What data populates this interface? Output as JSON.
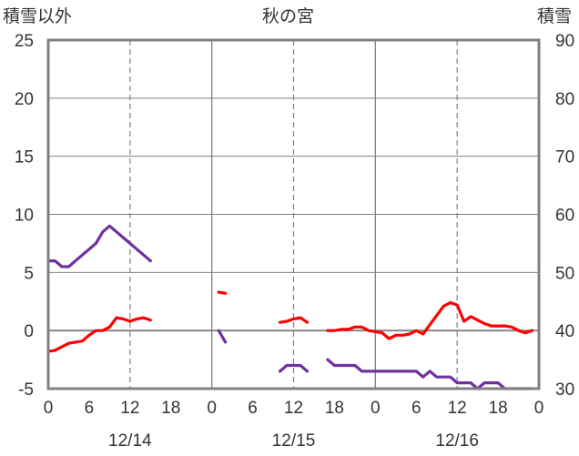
{
  "chart_data": {
    "type": "line",
    "title": "秋の宮",
    "left_axis": {
      "label": "積雪以外",
      "ylim": [
        -5,
        25
      ],
      "ticks": [
        25,
        20,
        15,
        10,
        5,
        0,
        -5
      ]
    },
    "right_axis": {
      "label": "積雪",
      "ylim": [
        30,
        90
      ],
      "ticks": [
        90,
        80,
        70,
        60,
        50,
        40,
        30
      ]
    },
    "x_axis": {
      "unit": "hours from 12/14 00:00",
      "range": [
        0,
        72
      ],
      "tick_hours": [
        0,
        6,
        12,
        18,
        24,
        30,
        36,
        42,
        48,
        54,
        60,
        66,
        72
      ],
      "tick_labels": [
        "0",
        "6",
        "12",
        "18",
        "0",
        "6",
        "12",
        "18",
        "0",
        "6",
        "12",
        "18",
        "0"
      ],
      "day_labels": [
        {
          "hour": 12,
          "label": "12/14"
        },
        {
          "hour": 36,
          "label": "12/15"
        },
        {
          "hour": 60,
          "label": "12/16"
        }
      ],
      "day_boundaries": [
        24,
        48
      ],
      "noon_lines": [
        12,
        36,
        60
      ]
    },
    "grid": true,
    "colors": {
      "temperature": "#ff0000",
      "snow_depth": "#7030a0",
      "frame": "#808080",
      "grid": "#808080"
    },
    "series": [
      {
        "axis": "left",
        "color": "#ff0000",
        "segments": [
          [
            [
              0,
              -1.8
            ],
            [
              1,
              -1.7
            ],
            [
              2,
              -1.4
            ],
            [
              3,
              -1.1
            ],
            [
              4,
              -1.0
            ],
            [
              5,
              -0.9
            ],
            [
              6,
              -0.4
            ],
            [
              7,
              0
            ],
            [
              8,
              0
            ],
            [
              9,
              0.3
            ],
            [
              10,
              1.1
            ],
            [
              11,
              1.0
            ],
            [
              12,
              0.8
            ],
            [
              13,
              1.0
            ],
            [
              14,
              1.1
            ],
            [
              15,
              0.9
            ]
          ],
          [
            [
              25,
              3.3
            ],
            [
              26,
              3.2
            ]
          ],
          [
            [
              34,
              0.7
            ],
            [
              35,
              0.8
            ],
            [
              36,
              1.0
            ],
            [
              37,
              1.1
            ],
            [
              38,
              0.7
            ]
          ],
          [
            [
              41,
              0
            ],
            [
              42,
              0
            ],
            [
              43,
              0.1
            ],
            [
              44,
              0.1
            ],
            [
              45,
              0.3
            ],
            [
              46,
              0.3
            ],
            [
              47,
              0
            ],
            [
              48,
              -0.1
            ],
            [
              49,
              -0.2
            ],
            [
              50,
              -0.7
            ],
            [
              51,
              -0.4
            ],
            [
              52,
              -0.4
            ],
            [
              53,
              -0.3
            ],
            [
              54,
              0
            ],
            [
              55,
              -0.3
            ],
            [
              56,
              0.5
            ],
            [
              57,
              1.3
            ],
            [
              58,
              2.1
            ],
            [
              59,
              2.4
            ],
            [
              60,
              2.2
            ],
            [
              61,
              0.8
            ],
            [
              62,
              1.2
            ],
            [
              63,
              0.9
            ],
            [
              64,
              0.6
            ],
            [
              65,
              0.4
            ],
            [
              66,
              0.4
            ],
            [
              67,
              0.4
            ],
            [
              68,
              0.3
            ],
            [
              69,
              0
            ],
            [
              70,
              -0.2
            ],
            [
              71,
              0
            ]
          ]
        ]
      },
      {
        "axis": "right",
        "color": "#7030a0",
        "segments": [
          [
            [
              0,
              52
            ],
            [
              1,
              52
            ],
            [
              2,
              51
            ],
            [
              3,
              51
            ],
            [
              4,
              52
            ],
            [
              5,
              53
            ],
            [
              6,
              54
            ],
            [
              7,
              55
            ],
            [
              8,
              57
            ],
            [
              9,
              58
            ],
            [
              10,
              57
            ],
            [
              11,
              56
            ],
            [
              12,
              55
            ],
            [
              13,
              54
            ],
            [
              14,
              53
            ],
            [
              15,
              52
            ]
          ],
          [
            [
              25,
              40
            ],
            [
              26,
              38
            ]
          ],
          [
            [
              34,
              33
            ],
            [
              35,
              34
            ],
            [
              36,
              34
            ],
            [
              37,
              34
            ],
            [
              38,
              33
            ]
          ],
          [
            [
              41,
              35
            ],
            [
              42,
              34
            ],
            [
              43,
              34
            ],
            [
              44,
              34
            ],
            [
              45,
              34
            ],
            [
              46,
              33
            ],
            [
              47,
              33
            ],
            [
              48,
              33
            ],
            [
              49,
              33
            ],
            [
              50,
              33
            ],
            [
              51,
              33
            ],
            [
              52,
              33
            ],
            [
              53,
              33
            ],
            [
              54,
              33
            ],
            [
              55,
              32
            ],
            [
              56,
              33
            ],
            [
              57,
              32
            ],
            [
              58,
              32
            ],
            [
              59,
              32
            ],
            [
              60,
              31
            ],
            [
              61,
              31
            ],
            [
              62,
              31
            ],
            [
              63,
              30
            ],
            [
              64,
              31
            ],
            [
              65,
              31
            ],
            [
              66,
              31
            ],
            [
              67,
              30
            ],
            [
              68,
              30
            ],
            [
              69,
              30
            ],
            [
              70,
              30
            ],
            [
              71,
              30
            ]
          ]
        ]
      }
    ]
  }
}
